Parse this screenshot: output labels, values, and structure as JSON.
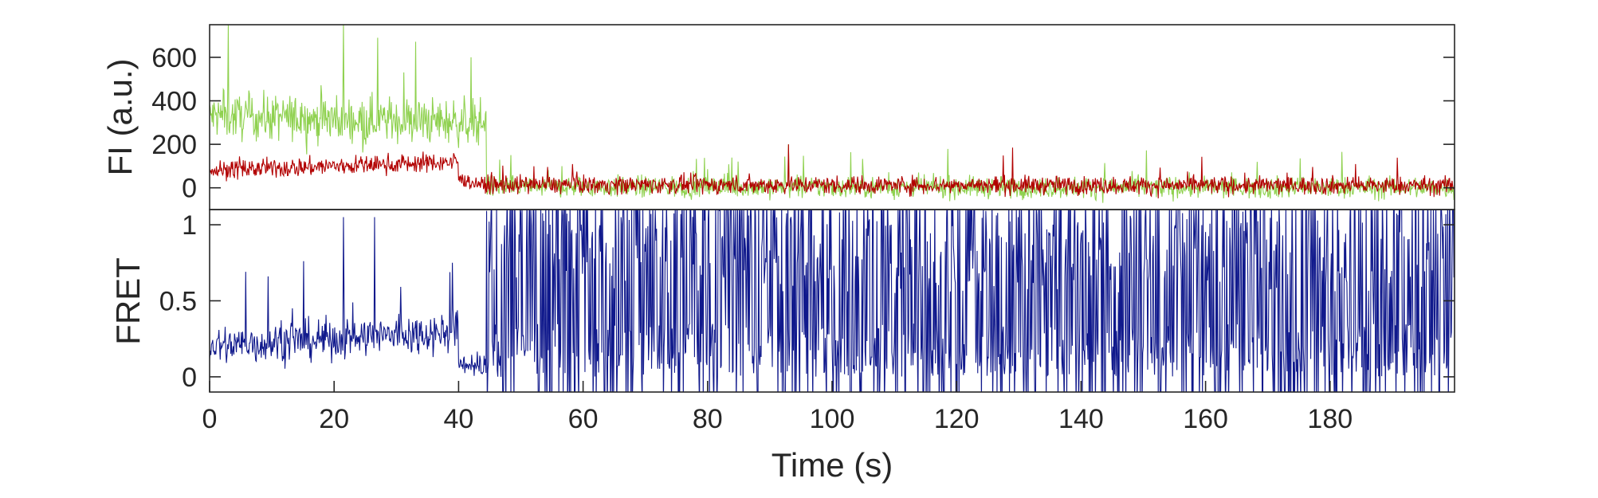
{
  "chart_data": [
    {
      "id": "fluorescence",
      "type": "line",
      "ylabel": "FI (a.u.)",
      "xlim": [
        0,
        200
      ],
      "ylim": [
        -100,
        750
      ],
      "yticks": [
        0,
        200,
        400,
        600
      ],
      "ytick_labels": [
        "0",
        "200",
        "400",
        "600"
      ],
      "grid": false,
      "series": [
        {
          "role": "donor",
          "color": "#8fd14f",
          "sample_dt": 0.1,
          "segments": [
            {
              "t_start": 0,
              "t_end": 44.5,
              "mean_start": 330,
              "mean_end": 300,
              "noise": 95,
              "spike_prob": 0.015,
              "spike_max": 420
            },
            {
              "t_start": 44.5,
              "t_end": 200,
              "mean_start": 5,
              "mean_end": 0,
              "noise": 45,
              "spike_prob": 0.012,
              "spike_max": 160
            }
          ],
          "peaks": [
            {
              "t": 3,
              "v": 750
            },
            {
              "t": 21.5,
              "v": 750
            },
            {
              "t": 27,
              "v": 690
            },
            {
              "t": 42,
              "v": 600
            },
            {
              "t": 93,
              "v": 200
            }
          ]
        },
        {
          "role": "acceptor",
          "color": "#b20000",
          "sample_dt": 0.1,
          "segments": [
            {
              "t_start": 0,
              "t_end": 40,
              "mean_start": 80,
              "mean_end": 120,
              "noise": 40,
              "spike_prob": 0.01,
              "spike_max": 110
            },
            {
              "t_start": 40,
              "t_end": 44.5,
              "mean_start": 40,
              "mean_end": 10,
              "noise": 30,
              "spike_prob": 0.0,
              "spike_max": 0
            },
            {
              "t_start": 44.5,
              "t_end": 200,
              "mean_start": 15,
              "mean_end": 10,
              "noise": 38,
              "spike_prob": 0.012,
              "spike_max": 120
            }
          ],
          "peaks": [
            {
              "t": 93,
              "v": 200
            },
            {
              "t": 129,
              "v": 185
            }
          ]
        }
      ]
    },
    {
      "id": "fret",
      "type": "line",
      "xlabel": "Time (s)",
      "ylabel": "FRET",
      "xlim": [
        0,
        200
      ],
      "ylim": [
        -0.1,
        1.1
      ],
      "xticks": [
        0,
        20,
        40,
        60,
        80,
        100,
        120,
        140,
        160,
        180
      ],
      "xtick_labels": [
        "0",
        "20",
        "40",
        "60",
        "80",
        "100",
        "120",
        "140",
        "160",
        "180"
      ],
      "yticks": [
        0,
        0.5,
        1
      ],
      "ytick_labels": [
        "0",
        "0.5",
        "1"
      ],
      "grid": false,
      "series": [
        {
          "role": "fret",
          "color": "#10198c",
          "sample_dt": 0.1,
          "segments": [
            {
              "t_start": 0,
              "t_end": 40,
              "mean_start": 0.2,
              "mean_end": 0.3,
              "noise": 0.12,
              "spike_prob": 0.02,
              "spike_max": 0.6
            },
            {
              "t_start": 40,
              "t_end": 44.5,
              "mean_start": 0.1,
              "mean_end": 0.05,
              "noise": 0.08,
              "spike_prob": 0.0,
              "spike_max": 0
            },
            {
              "t_start": 44.5,
              "t_end": 200,
              "mean_start": 0.5,
              "mean_end": 0.5,
              "noise": 0.9,
              "spike_prob": 0.0,
              "spike_max": 0
            }
          ],
          "peaks": [
            {
              "t": 26.5,
              "v": 1.05
            },
            {
              "t": 21.5,
              "v": 1.05
            },
            {
              "t": 39,
              "v": 0.75
            }
          ]
        }
      ]
    }
  ]
}
